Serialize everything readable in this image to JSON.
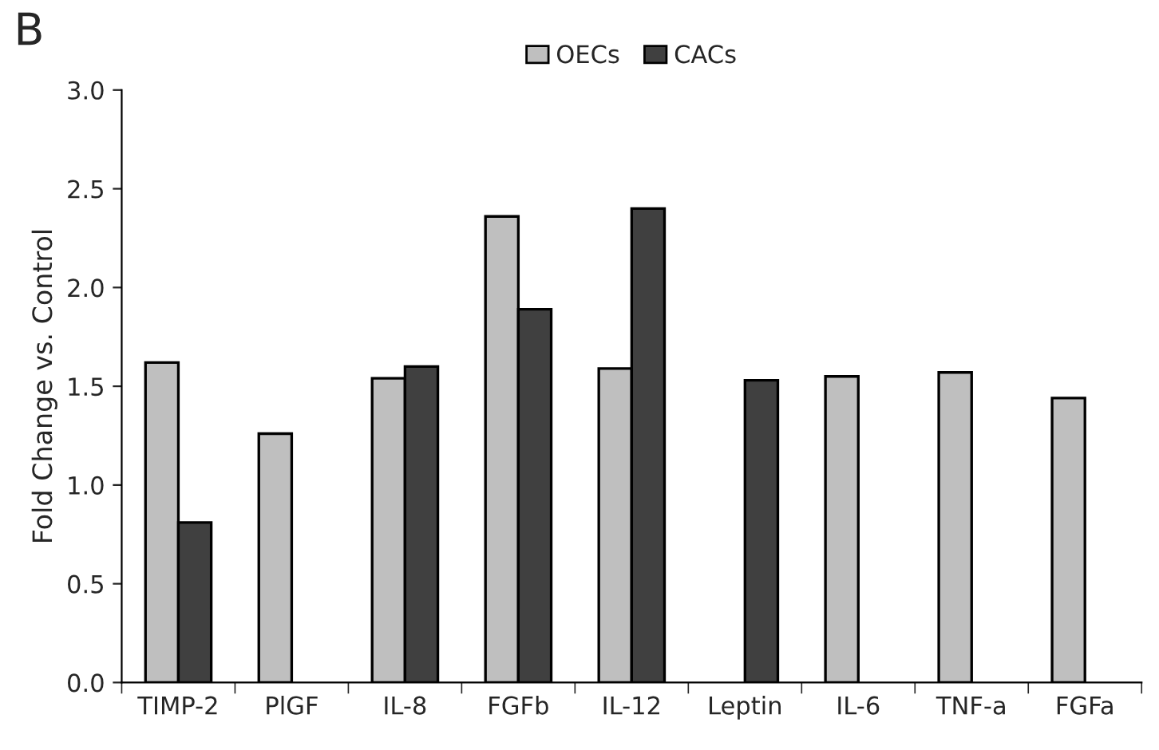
{
  "chart_data": {
    "type": "bar",
    "title": "B",
    "ylabel": "Fold Change vs. Control",
    "categories": [
      "TIMP-2",
      "PlGF",
      "IL-8",
      "FGFb",
      "IL-12",
      "Leptin",
      "IL-6",
      "TNF-a",
      "FGFa"
    ],
    "series": [
      {
        "name": "OECs",
        "color": "#bfbfbf",
        "values": [
          1.62,
          1.26,
          1.54,
          2.36,
          1.59,
          null,
          1.55,
          1.57,
          1.44
        ]
      },
      {
        "name": "CACs",
        "color": "#404040",
        "values": [
          0.81,
          null,
          1.6,
          1.89,
          2.4,
          1.53,
          null,
          null,
          null
        ]
      }
    ],
    "ylim": [
      0,
      3
    ],
    "yticks": [
      {
        "value": 0,
        "label": "0.0"
      },
      {
        "value": 0.5,
        "label": "0.5"
      },
      {
        "value": 1,
        "label": "1.0"
      },
      {
        "value": 1.5,
        "label": "1.5"
      },
      {
        "value": 2,
        "label": "2.0"
      },
      {
        "value": 2.5,
        "label": "2.5"
      },
      {
        "value": 3,
        "label": "3.0"
      }
    ],
    "grid": false,
    "legend": "top"
  }
}
